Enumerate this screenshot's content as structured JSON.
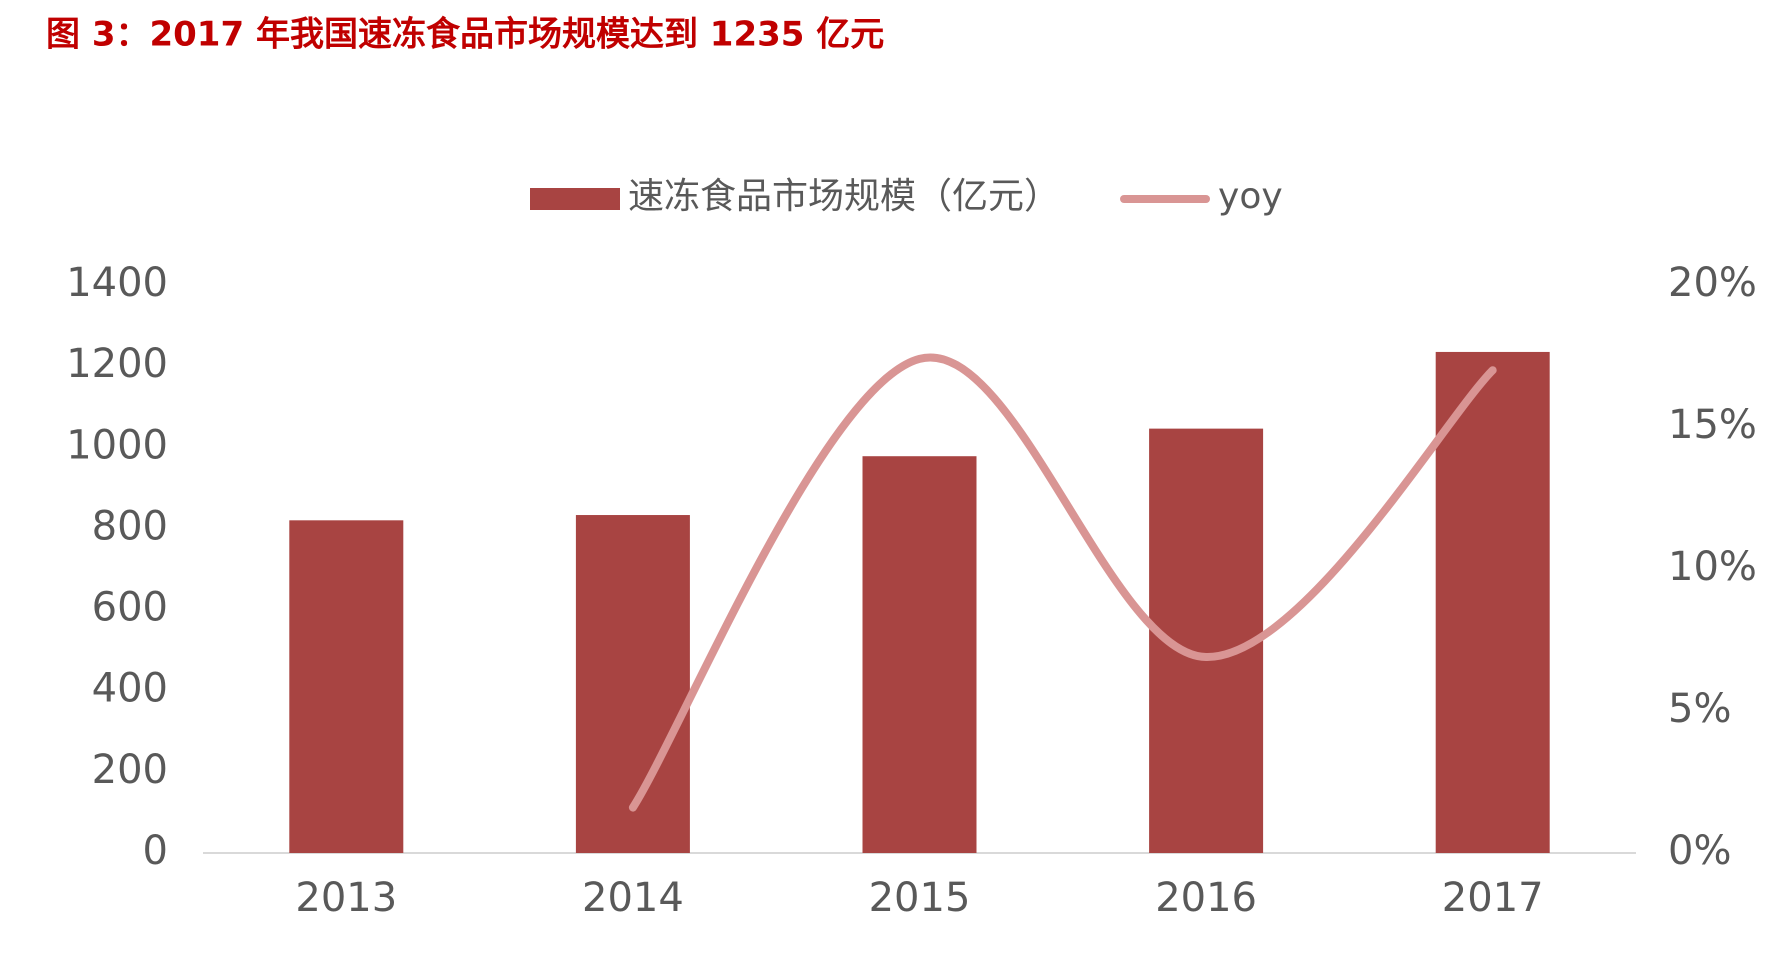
{
  "chart_data": {
    "type": "bar-line",
    "title": "图 3：2017 年我国速冻食品市场规模达到 1235 亿元",
    "categories": [
      "2013",
      "2014",
      "2015",
      "2016",
      "2017"
    ],
    "series": [
      {
        "name": "速冻食品市场规模（亿元）",
        "type": "bar",
        "color": "#a84442",
        "values": [
          820,
          833,
          978,
          1046,
          1235
        ]
      },
      {
        "name": "yoy",
        "type": "line",
        "axis": "y2",
        "color": "#d99594",
        "values": [
          null,
          1.6,
          17.4,
          6.9,
          17.0
        ]
      }
    ],
    "ylim": [
      0,
      1400
    ],
    "yticks": [
      0,
      200,
      400,
      600,
      800,
      1000,
      1200,
      1400
    ],
    "y2lim": [
      0,
      20
    ],
    "y2ticks": [
      {
        "value": 0,
        "label": "0%"
      },
      {
        "value": 5,
        "label": "5%"
      },
      {
        "value": 10,
        "label": "10%"
      },
      {
        "value": 15,
        "label": "15%"
      },
      {
        "value": 20,
        "label": "20%"
      }
    ],
    "legend": "top",
    "grid": false
  }
}
